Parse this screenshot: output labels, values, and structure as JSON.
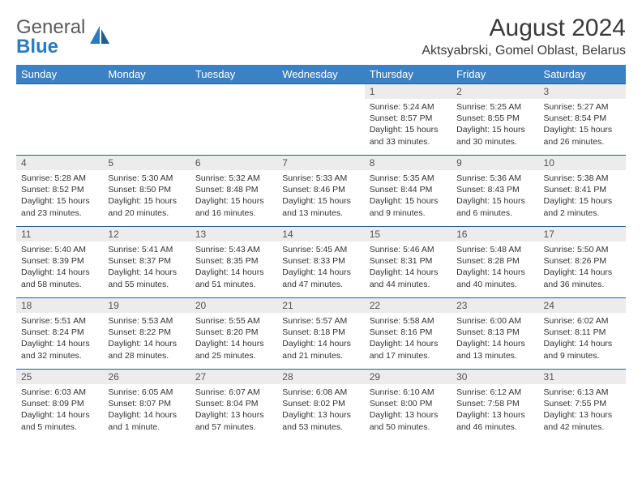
{
  "logo": {
    "word1": "General",
    "word2": "Blue"
  },
  "title": "August 2024",
  "location": "Aktsyabrski, Gomel Oblast, Belarus",
  "colors": {
    "header_bg": "#3b82c4",
    "header_text": "#ffffff",
    "daynum_bg": "#ececec",
    "row_border": "#2a5c8f",
    "logo_gray": "#5a5a5a",
    "logo_blue": "#2a7bbf"
  },
  "day_names": [
    "Sunday",
    "Monday",
    "Tuesday",
    "Wednesday",
    "Thursday",
    "Friday",
    "Saturday"
  ],
  "weeks": [
    [
      {
        "n": "",
        "sr": "",
        "ss": "",
        "dl": ""
      },
      {
        "n": "",
        "sr": "",
        "ss": "",
        "dl": ""
      },
      {
        "n": "",
        "sr": "",
        "ss": "",
        "dl": ""
      },
      {
        "n": "",
        "sr": "",
        "ss": "",
        "dl": ""
      },
      {
        "n": "1",
        "sr": "Sunrise: 5:24 AM",
        "ss": "Sunset: 8:57 PM",
        "dl": "Daylight: 15 hours and 33 minutes."
      },
      {
        "n": "2",
        "sr": "Sunrise: 5:25 AM",
        "ss": "Sunset: 8:55 PM",
        "dl": "Daylight: 15 hours and 30 minutes."
      },
      {
        "n": "3",
        "sr": "Sunrise: 5:27 AM",
        "ss": "Sunset: 8:54 PM",
        "dl": "Daylight: 15 hours and 26 minutes."
      }
    ],
    [
      {
        "n": "4",
        "sr": "Sunrise: 5:28 AM",
        "ss": "Sunset: 8:52 PM",
        "dl": "Daylight: 15 hours and 23 minutes."
      },
      {
        "n": "5",
        "sr": "Sunrise: 5:30 AM",
        "ss": "Sunset: 8:50 PM",
        "dl": "Daylight: 15 hours and 20 minutes."
      },
      {
        "n": "6",
        "sr": "Sunrise: 5:32 AM",
        "ss": "Sunset: 8:48 PM",
        "dl": "Daylight: 15 hours and 16 minutes."
      },
      {
        "n": "7",
        "sr": "Sunrise: 5:33 AM",
        "ss": "Sunset: 8:46 PM",
        "dl": "Daylight: 15 hours and 13 minutes."
      },
      {
        "n": "8",
        "sr": "Sunrise: 5:35 AM",
        "ss": "Sunset: 8:44 PM",
        "dl": "Daylight: 15 hours and 9 minutes."
      },
      {
        "n": "9",
        "sr": "Sunrise: 5:36 AM",
        "ss": "Sunset: 8:43 PM",
        "dl": "Daylight: 15 hours and 6 minutes."
      },
      {
        "n": "10",
        "sr": "Sunrise: 5:38 AM",
        "ss": "Sunset: 8:41 PM",
        "dl": "Daylight: 15 hours and 2 minutes."
      }
    ],
    [
      {
        "n": "11",
        "sr": "Sunrise: 5:40 AM",
        "ss": "Sunset: 8:39 PM",
        "dl": "Daylight: 14 hours and 58 minutes."
      },
      {
        "n": "12",
        "sr": "Sunrise: 5:41 AM",
        "ss": "Sunset: 8:37 PM",
        "dl": "Daylight: 14 hours and 55 minutes."
      },
      {
        "n": "13",
        "sr": "Sunrise: 5:43 AM",
        "ss": "Sunset: 8:35 PM",
        "dl": "Daylight: 14 hours and 51 minutes."
      },
      {
        "n": "14",
        "sr": "Sunrise: 5:45 AM",
        "ss": "Sunset: 8:33 PM",
        "dl": "Daylight: 14 hours and 47 minutes."
      },
      {
        "n": "15",
        "sr": "Sunrise: 5:46 AM",
        "ss": "Sunset: 8:31 PM",
        "dl": "Daylight: 14 hours and 44 minutes."
      },
      {
        "n": "16",
        "sr": "Sunrise: 5:48 AM",
        "ss": "Sunset: 8:28 PM",
        "dl": "Daylight: 14 hours and 40 minutes."
      },
      {
        "n": "17",
        "sr": "Sunrise: 5:50 AM",
        "ss": "Sunset: 8:26 PM",
        "dl": "Daylight: 14 hours and 36 minutes."
      }
    ],
    [
      {
        "n": "18",
        "sr": "Sunrise: 5:51 AM",
        "ss": "Sunset: 8:24 PM",
        "dl": "Daylight: 14 hours and 32 minutes."
      },
      {
        "n": "19",
        "sr": "Sunrise: 5:53 AM",
        "ss": "Sunset: 8:22 PM",
        "dl": "Daylight: 14 hours and 28 minutes."
      },
      {
        "n": "20",
        "sr": "Sunrise: 5:55 AM",
        "ss": "Sunset: 8:20 PM",
        "dl": "Daylight: 14 hours and 25 minutes."
      },
      {
        "n": "21",
        "sr": "Sunrise: 5:57 AM",
        "ss": "Sunset: 8:18 PM",
        "dl": "Daylight: 14 hours and 21 minutes."
      },
      {
        "n": "22",
        "sr": "Sunrise: 5:58 AM",
        "ss": "Sunset: 8:16 PM",
        "dl": "Daylight: 14 hours and 17 minutes."
      },
      {
        "n": "23",
        "sr": "Sunrise: 6:00 AM",
        "ss": "Sunset: 8:13 PM",
        "dl": "Daylight: 14 hours and 13 minutes."
      },
      {
        "n": "24",
        "sr": "Sunrise: 6:02 AM",
        "ss": "Sunset: 8:11 PM",
        "dl": "Daylight: 14 hours and 9 minutes."
      }
    ],
    [
      {
        "n": "25",
        "sr": "Sunrise: 6:03 AM",
        "ss": "Sunset: 8:09 PM",
        "dl": "Daylight: 14 hours and 5 minutes."
      },
      {
        "n": "26",
        "sr": "Sunrise: 6:05 AM",
        "ss": "Sunset: 8:07 PM",
        "dl": "Daylight: 14 hours and 1 minute."
      },
      {
        "n": "27",
        "sr": "Sunrise: 6:07 AM",
        "ss": "Sunset: 8:04 PM",
        "dl": "Daylight: 13 hours and 57 minutes."
      },
      {
        "n": "28",
        "sr": "Sunrise: 6:08 AM",
        "ss": "Sunset: 8:02 PM",
        "dl": "Daylight: 13 hours and 53 minutes."
      },
      {
        "n": "29",
        "sr": "Sunrise: 6:10 AM",
        "ss": "Sunset: 8:00 PM",
        "dl": "Daylight: 13 hours and 50 minutes."
      },
      {
        "n": "30",
        "sr": "Sunrise: 6:12 AM",
        "ss": "Sunset: 7:58 PM",
        "dl": "Daylight: 13 hours and 46 minutes."
      },
      {
        "n": "31",
        "sr": "Sunrise: 6:13 AM",
        "ss": "Sunset: 7:55 PM",
        "dl": "Daylight: 13 hours and 42 minutes."
      }
    ]
  ]
}
